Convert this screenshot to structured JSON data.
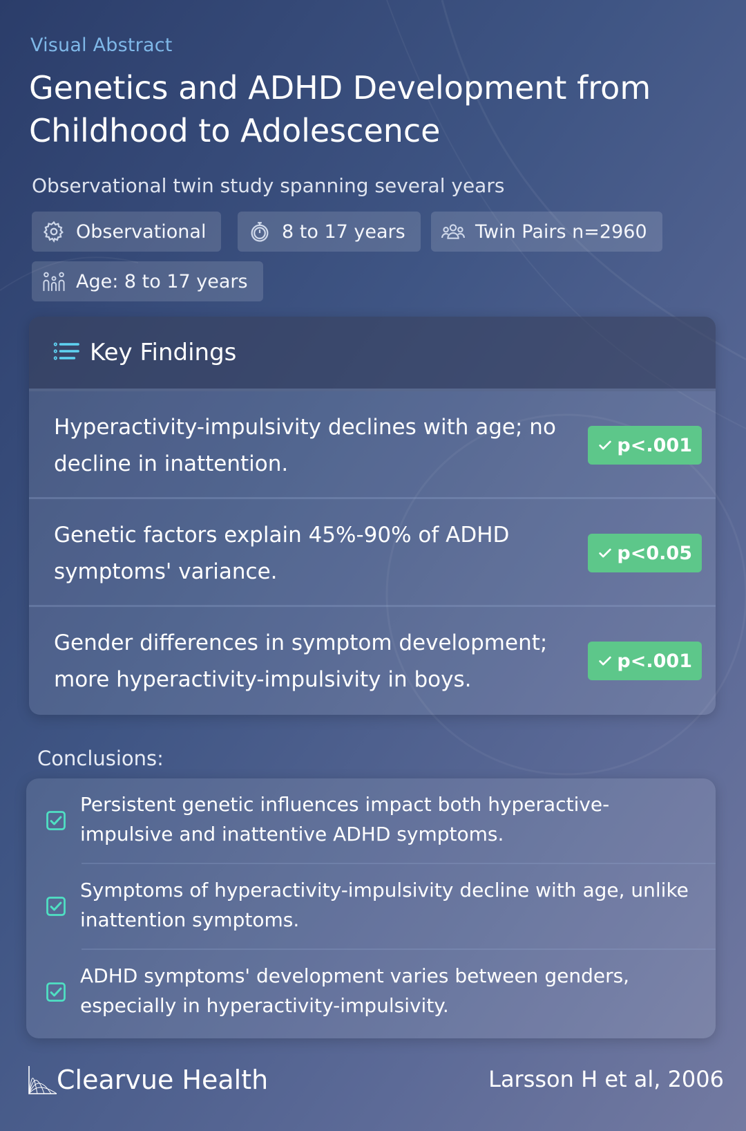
{
  "header": {
    "eyebrow": "Visual Abstract",
    "title": "Genetics and ADHD Development from Childhood to Adolescence",
    "subtitle": "Observational twin study spanning several years"
  },
  "chips": [
    {
      "icon": "gear-icon",
      "label": "Observational"
    },
    {
      "icon": "stopwatch-icon",
      "label": "8 to 17 years"
    },
    {
      "icon": "group-icon",
      "label": "Twin Pairs n=2960"
    },
    {
      "icon": "family-icon",
      "label": "Age: 8 to 17 years"
    }
  ],
  "findings": {
    "heading": "Key Findings",
    "items": [
      {
        "text": "Hyperactivity-impulsivity declines with age; no decline in inattention.",
        "p": "p<.001"
      },
      {
        "text": "Genetic factors explain 45%-90% of ADHD symptoms' variance.",
        "p": "p<0.05"
      },
      {
        "text": "Gender differences in symptom development; more hyperactivity-impulsivity in boys.",
        "p": "p<.001"
      }
    ]
  },
  "conclusions": {
    "label": "Conclusions:",
    "items": [
      "Persistent genetic influences impact both hyperactive-impulsive and inattentive ADHD symptoms.",
      "Symptoms of hyperactivity-impulsivity decline with age, unlike inattention symptoms.",
      "ADHD symptoms' development varies between genders, especially in hyperactivity-impulsivity."
    ]
  },
  "footer": {
    "brand": "Clearvue Health",
    "citation": "Larsson H et al, 2006"
  },
  "colors": {
    "accent": "#7fb8e8",
    "badge_green": "#5dc78a",
    "check_teal": "#4fe0c3"
  }
}
